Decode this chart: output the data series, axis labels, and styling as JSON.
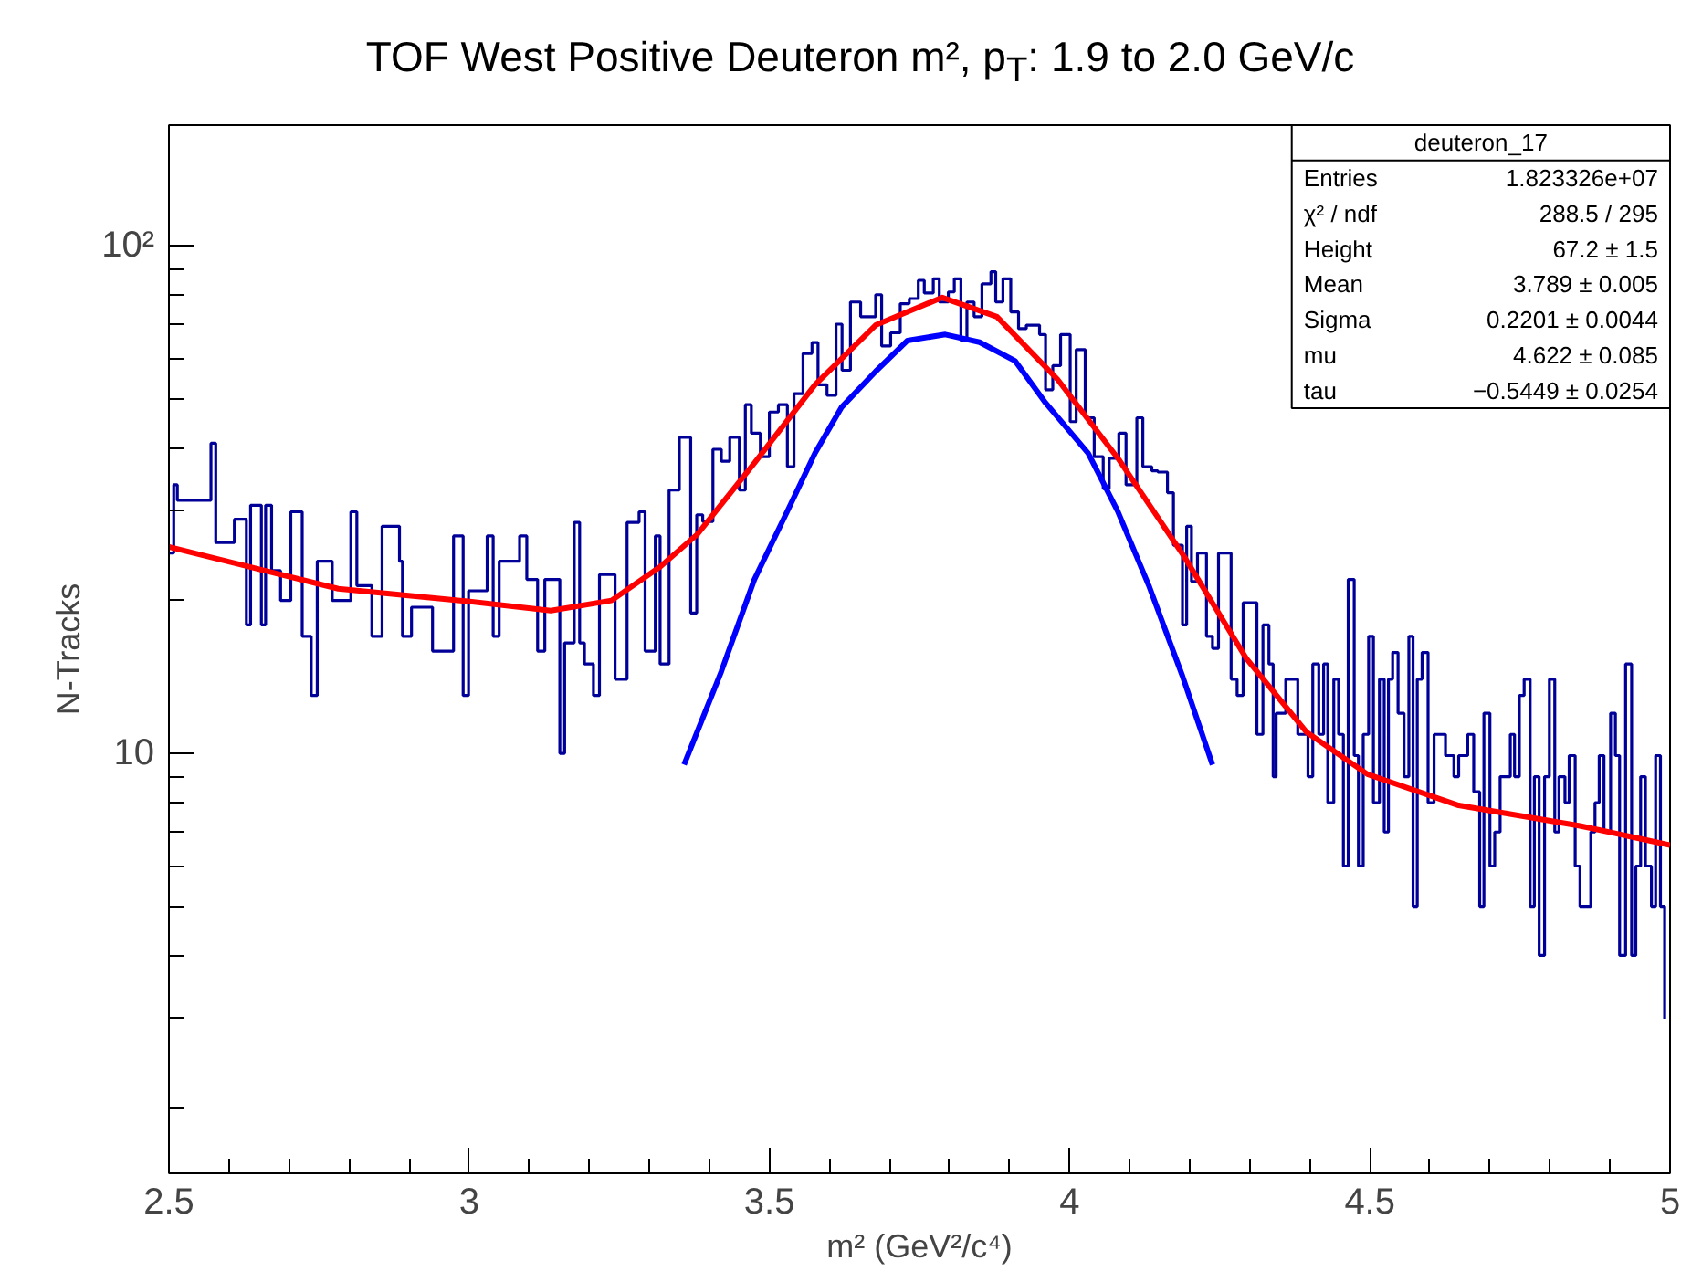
{
  "chart_data": {
    "type": "step",
    "title": "TOF West Positive Deuteron m², p$_{T}$: 1.9 to 2.0 GeV/c",
    "xlabel": "m² (GeV²/c⁴)",
    "ylabel": "N-Tracks",
    "xlim": [
      2.5,
      5
    ],
    "ylim": [
      1.49,
      172.6
    ],
    "log": true,
    "grid": false,
    "xticks": [
      2.5,
      {
        "value": 2.6,
        "label": null
      },
      {
        "value": 2.7,
        "label": null
      },
      {
        "value": 2.8,
        "label": null
      },
      {
        "value": 2.9,
        "label": null
      },
      3,
      {
        "value": 3.1,
        "label": null
      },
      {
        "value": 3.2,
        "label": null
      },
      {
        "value": 3.3,
        "label": null
      },
      {
        "value": 3.4,
        "label": null
      },
      3.5,
      {
        "value": 3.6,
        "label": null
      },
      {
        "value": 3.7,
        "label": null
      },
      {
        "value": 3.8,
        "label": null
      },
      {
        "value": 3.9,
        "label": null
      },
      4,
      {
        "value": 4.1,
        "label": null
      },
      {
        "value": 4.2,
        "label": null
      },
      {
        "value": 4.3,
        "label": null
      },
      {
        "value": 4.4,
        "label": null
      },
      4.5,
      {
        "value": 4.6,
        "label": null
      },
      {
        "value": 4.7,
        "label": null
      },
      {
        "value": 4.8,
        "label": null
      },
      {
        "value": 4.9,
        "label": null
      },
      5
    ],
    "yticks": [
      {
        "value": 2,
        "label": null
      },
      {
        "value": 3,
        "label": null
      },
      {
        "value": 4,
        "label": null
      },
      {
        "value": 5,
        "label": null
      },
      {
        "value": 6,
        "label": null
      },
      {
        "value": 7,
        "label": null
      },
      {
        "value": 8,
        "label": null
      },
      {
        "value": 9,
        "label": null
      },
      10,
      {
        "value": 20,
        "label": null
      },
      {
        "value": 30,
        "label": null
      },
      {
        "value": 40,
        "label": null
      },
      {
        "value": 50,
        "label": null
      },
      {
        "value": 60,
        "label": null
      },
      {
        "value": 70,
        "label": null
      },
      {
        "value": 80,
        "label": null
      },
      {
        "value": 90,
        "label": null
      },
      {
        "value": 100,
        "label": "10²"
      }
    ],
    "series": [
      {
        "color": "#000099",
        "x": [
          2.5,
          2.508,
          2.514,
          2.57,
          2.578,
          2.609,
          2.629,
          2.636,
          2.654,
          2.661,
          2.671,
          2.686,
          2.703,
          2.722,
          2.737,
          2.747,
          2.772,
          2.803,
          2.813,
          2.838,
          2.855,
          2.884,
          2.889,
          2.904,
          2.939,
          2.974,
          2.99,
          2.999,
          3.03,
          3.04,
          3.05,
          3.071,
          3.084,
          3.096,
          3.114,
          3.126,
          3.151,
          3.159,
          3.175,
          3.184,
          3.192,
          3.207,
          3.217,
          3.243,
          3.263,
          3.283,
          3.293,
          3.31,
          3.318,
          3.333,
          3.35,
          3.369,
          3.379,
          3.389,
          3.406,
          3.42,
          3.434,
          3.45,
          3.46,
          3.47,
          3.485,
          3.5,
          3.515,
          3.53,
          3.541,
          3.556,
          3.571,
          3.581,
          3.596,
          3.611,
          3.621,
          3.635,
          3.652,
          3.677,
          3.687,
          3.702,
          3.718,
          3.733,
          3.748,
          3.758,
          3.773,
          3.783,
          3.798,
          3.808,
          3.819,
          3.829,
          3.841,
          3.854,
          3.869,
          3.877,
          3.889,
          3.902,
          3.915,
          3.928,
          3.95,
          3.96,
          3.972,
          3.985,
          4.001,
          4.011,
          4.026,
          4.041,
          4.056,
          4.066,
          4.082,
          4.094,
          4.112,
          4.122,
          4.137,
          4.147,
          4.163,
          4.173,
          4.188,
          4.195,
          4.203,
          4.213,
          4.228,
          4.238,
          4.248,
          4.269,
          4.279,
          4.289,
          4.312,
          4.322,
          4.332,
          4.339,
          4.344,
          4.36,
          4.38,
          4.397,
          4.405,
          4.415,
          4.423,
          4.43,
          4.44,
          4.448,
          4.456,
          4.464,
          4.474,
          4.481,
          4.489,
          4.498,
          4.506,
          4.516,
          4.524,
          4.531,
          4.538,
          4.547,
          4.557,
          4.565,
          4.572,
          4.579,
          4.587,
          4.597,
          4.607,
          4.626,
          4.64,
          4.648,
          4.663,
          4.673,
          4.683,
          4.69,
          4.7,
          4.708,
          4.717,
          4.734,
          4.741,
          4.749,
          4.757,
          4.767,
          4.774,
          4.782,
          4.791,
          4.799,
          4.808,
          4.815,
          4.825,
          4.832,
          4.842,
          4.85,
          4.868,
          4.875,
          4.882,
          4.89,
          4.901,
          4.909,
          4.916,
          4.926,
          4.936,
          4.943,
          4.951,
          4.959,
          4.969,
          4.976,
          4.984,
          4.991
        ],
        "values": [
          24.8,
          33.8,
          31.5,
          40.8,
          26.0,
          28.9,
          17.9,
          30.8,
          17.9,
          30.8,
          22.9,
          20.0,
          29.9,
          17.0,
          13.0,
          23.9,
          20.0,
          29.9,
          21.4,
          17.0,
          28.0,
          23.9,
          17.0,
          19.4,
          15.9,
          26.8,
          13.0,
          20.9,
          26.8,
          17.0,
          23.9,
          23.9,
          26.8,
          22.0,
          15.9,
          22.0,
          10.0,
          16.5,
          28.5,
          16.5,
          15.0,
          13.0,
          22.5,
          14.0,
          28.5,
          29.9,
          15.9,
          26.8,
          15.0,
          33.0,
          41.9,
          18.9,
          29.5,
          28.6,
          39.7,
          37.6,
          41.9,
          33.0,
          48.6,
          42.7,
          38.4,
          47.0,
          48.6,
          36.7,
          51.1,
          61.3,
          64.4,
          53.2,
          50.7,
          70.0,
          56.8,
          77.4,
          72.4,
          80.0,
          63.4,
          67.3,
          76.8,
          78.6,
          85.4,
          80.6,
          86.0,
          77.4,
          81.0,
          86.0,
          65.0,
          77.4,
          72.4,
          84.0,
          88.8,
          77.4,
          86.0,
          74.0,
          68.6,
          69.7,
          66.8,
          52.0,
          58.0,
          66.8,
          45.0,
          62.4,
          45.8,
          38.4,
          33.2,
          38.1,
          42.7,
          33.8,
          45.8,
          36.7,
          36.0,
          35.8,
          32.6,
          25.7,
          17.9,
          28.0,
          21.8,
          24.8,
          17.0,
          16.1,
          24.8,
          14.0,
          13.0,
          19.8,
          10.9,
          17.9,
          15.0,
          9.0,
          12.0,
          14.0,
          10.9,
          9.0,
          15.0,
          10.9,
          15.0,
          8.0,
          14.0,
          10.9,
          6.0,
          22.0,
          9.9,
          6.0,
          10.9,
          17.0,
          8.0,
          14.0,
          7.0,
          14.0,
          15.8,
          12.0,
          9.0,
          17.0,
          5.0,
          14.0,
          15.8,
          8.0,
          10.9,
          9.9,
          9.0,
          9.9,
          10.9,
          8.4,
          5.0,
          12.0,
          6.0,
          7.0,
          9.0,
          10.9,
          9.0,
          13.0,
          14.0,
          5.0,
          9.0,
          4.0,
          9.0,
          14.0,
          7.0,
          9.0,
          8.0,
          9.9,
          6.0,
          5.0,
          7.0,
          8.0,
          9.9,
          7.0,
          12.0,
          9.9,
          4.0,
          15.0,
          4.0,
          6.0,
          9.0,
          6.0,
          5.0,
          9.9,
          5.0,
          3.0
        ]
      },
      {
        "type": "line",
        "color": "#ff0000",
        "x": [
          2.5,
          2.782,
          2.985,
          3.136,
          3.237,
          3.318,
          3.38,
          3.475,
          3.576,
          3.677,
          3.788,
          3.879,
          3.98,
          4.082,
          4.19,
          4.294,
          4.395,
          4.496,
          4.648,
          4.85,
          5.0
        ],
        "values": [
          25.5,
          21.1,
          20.0,
          19.1,
          20.0,
          23.3,
          27.0,
          37.3,
          53.2,
          69.7,
          79.0,
          72.4,
          54.5,
          37.9,
          24.5,
          15.4,
          11.0,
          9.1,
          7.9,
          7.2,
          6.6
        ]
      },
      {
        "type": "line",
        "color": "#0000ff",
        "x": [
          3.358,
          3.42,
          3.475,
          3.53,
          3.576,
          3.62,
          3.677,
          3.73,
          3.793,
          3.85,
          3.909,
          3.96,
          4.031,
          4.08,
          4.132,
          4.188,
          4.238
        ],
        "values": [
          9.5,
          14.5,
          22.0,
          30.0,
          39.0,
          48.0,
          56.5,
          65.0,
          66.8,
          64.5,
          59.3,
          49.0,
          39.0,
          30.0,
          21.4,
          14.2,
          9.5
        ]
      }
    ],
    "annotations": [
      "deuteron_17",
      "Entries",
      "1.823326e+07",
      "χ² / ndf",
      "288.5 / 295",
      "Height",
      "67.2 ± 1.5",
      "Mean",
      "3.789 ± 0.005",
      "Sigma",
      "0.2201 ± 0.0044",
      "mu",
      "4.622 ± 0.085",
      "tau",
      "−0.5449 ± 0.0254"
    ]
  }
}
